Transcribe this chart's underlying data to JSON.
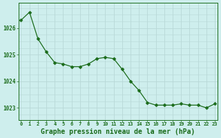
{
  "x": [
    0,
    1,
    2,
    3,
    4,
    5,
    6,
    7,
    8,
    9,
    10,
    11,
    12,
    13,
    14,
    15,
    16,
    17,
    18,
    19,
    20,
    21,
    22,
    23
  ],
  "y": [
    1026.3,
    1026.6,
    1025.6,
    1025.1,
    1024.7,
    1024.65,
    1024.55,
    1024.55,
    1024.65,
    1024.85,
    1024.9,
    1024.85,
    1024.45,
    1024.0,
    1023.65,
    1023.2,
    1023.1,
    1023.1,
    1023.1,
    1023.15,
    1023.1,
    1023.1,
    1023.0,
    1023.15
  ],
  "line_color": "#1a6b1a",
  "marker": "D",
  "marker_size": 2.5,
  "bg_color": "#ceeeed",
  "grid_color": "#b8d8d7",
  "xlabel": "Graphe pression niveau de la mer (hPa)",
  "xlabel_color": "#1a6b1a",
  "ytick_labels": [
    "1023",
    "1024",
    "1025",
    "1026"
  ],
  "ytick_values": [
    1023,
    1024,
    1025,
    1026
  ],
  "ylim": [
    1022.55,
    1026.95
  ],
  "xlim": [
    -0.3,
    23.3
  ],
  "xtick_fontsize": 5.0,
  "ytick_fontsize": 5.5,
  "xlabel_fontsize": 7.0
}
